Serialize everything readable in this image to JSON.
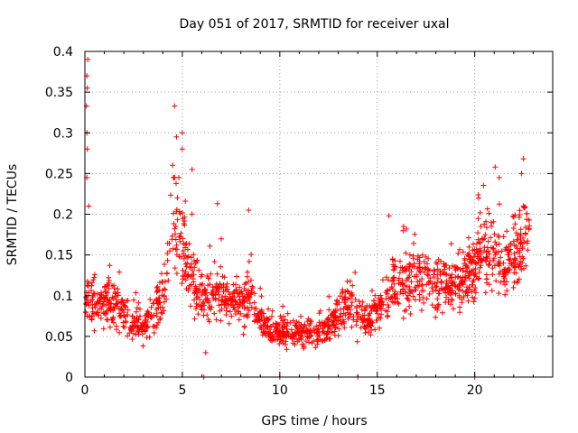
{
  "chart_data": {
    "type": "scatter",
    "title": "Day 051 of 2017, SRMTID for receiver uxal",
    "xlabel": "GPS time / hours",
    "ylabel": "SRMTID / TECUs",
    "xlim": [
      0,
      24
    ],
    "ylim": [
      0,
      0.4
    ],
    "grid": true,
    "marker": "+",
    "color": "#ff0000",
    "x_ticks": [
      0,
      5,
      10,
      15,
      20
    ],
    "x_tick_labels": [
      "0",
      "5",
      "10",
      "15",
      "20"
    ],
    "y_ticks": [
      0,
      0.05,
      0.1,
      0.15,
      0.2,
      0.25,
      0.3,
      0.35,
      0.4
    ],
    "y_tick_labels": [
      "0",
      "0.05",
      "0.1",
      "0.15",
      "0.2",
      "0.25",
      "0.3",
      "0.35",
      "0.4"
    ],
    "series": [
      {
        "name": "SRMTID",
        "x_range": [
          0,
          22.8
        ],
        "profile": [
          [
            0.0,
            0.07
          ],
          [
            0.1,
            0.1
          ],
          [
            0.3,
            0.09
          ],
          [
            0.5,
            0.09
          ],
          [
            1.0,
            0.09
          ],
          [
            1.5,
            0.095
          ],
          [
            2.0,
            0.08
          ],
          [
            2.5,
            0.06
          ],
          [
            3.0,
            0.06
          ],
          [
            3.5,
            0.08
          ],
          [
            4.0,
            0.1
          ],
          [
            4.5,
            0.19
          ],
          [
            5.0,
            0.16
          ],
          [
            5.5,
            0.12
          ],
          [
            6.0,
            0.1
          ],
          [
            6.5,
            0.1
          ],
          [
            7.0,
            0.1
          ],
          [
            7.5,
            0.09
          ],
          [
            8.0,
            0.09
          ],
          [
            8.5,
            0.1
          ],
          [
            9.0,
            0.07
          ],
          [
            9.5,
            0.06
          ],
          [
            10.0,
            0.055
          ],
          [
            11.0,
            0.055
          ],
          [
            12.0,
            0.055
          ],
          [
            12.5,
            0.06
          ],
          [
            13.0,
            0.08
          ],
          [
            13.5,
            0.09
          ],
          [
            14.0,
            0.08
          ],
          [
            14.5,
            0.07
          ],
          [
            15.0,
            0.08
          ],
          [
            15.5,
            0.1
          ],
          [
            16.0,
            0.12
          ],
          [
            17.0,
            0.12
          ],
          [
            18.0,
            0.12
          ],
          [
            18.5,
            0.11
          ],
          [
            19.0,
            0.11
          ],
          [
            19.5,
            0.12
          ],
          [
            20.0,
            0.13
          ],
          [
            20.5,
            0.16
          ],
          [
            21.0,
            0.15
          ],
          [
            21.5,
            0.13
          ],
          [
            22.0,
            0.15
          ],
          [
            22.5,
            0.17
          ],
          [
            22.8,
            0.17
          ]
        ],
        "notable_points": [
          {
            "x": 0.15,
            "y": 0.39
          },
          {
            "x": 0.1,
            "y": 0.37
          },
          {
            "x": 0.12,
            "y": 0.355
          },
          {
            "x": 0.08,
            "y": 0.333
          },
          {
            "x": 0.1,
            "y": 0.3
          },
          {
            "x": 0.12,
            "y": 0.28
          },
          {
            "x": 0.1,
            "y": 0.245
          },
          {
            "x": 0.2,
            "y": 0.21
          },
          {
            "x": 4.6,
            "y": 0.333
          },
          {
            "x": 4.7,
            "y": 0.295
          },
          {
            "x": 5.0,
            "y": 0.3
          },
          {
            "x": 5.0,
            "y": 0.28
          },
          {
            "x": 4.5,
            "y": 0.26
          },
          {
            "x": 5.5,
            "y": 0.255
          },
          {
            "x": 6.8,
            "y": 0.213
          },
          {
            "x": 8.4,
            "y": 0.205
          },
          {
            "x": 21.05,
            "y": 0.258
          },
          {
            "x": 22.5,
            "y": 0.268
          },
          {
            "x": 22.4,
            "y": 0.25
          },
          {
            "x": 15.6,
            "y": 0.198
          },
          {
            "x": 20.2,
            "y": 0.22
          },
          {
            "x": 6.1,
            "y": 0.0
          },
          {
            "x": 10.0,
            "y": 0.0
          },
          {
            "x": 12.0,
            "y": 0.0
          },
          {
            "x": 14.0,
            "y": 0.0
          },
          {
            "x": 20.0,
            "y": 0.0
          },
          {
            "x": 6.2,
            "y": 0.03
          }
        ]
      }
    ]
  }
}
